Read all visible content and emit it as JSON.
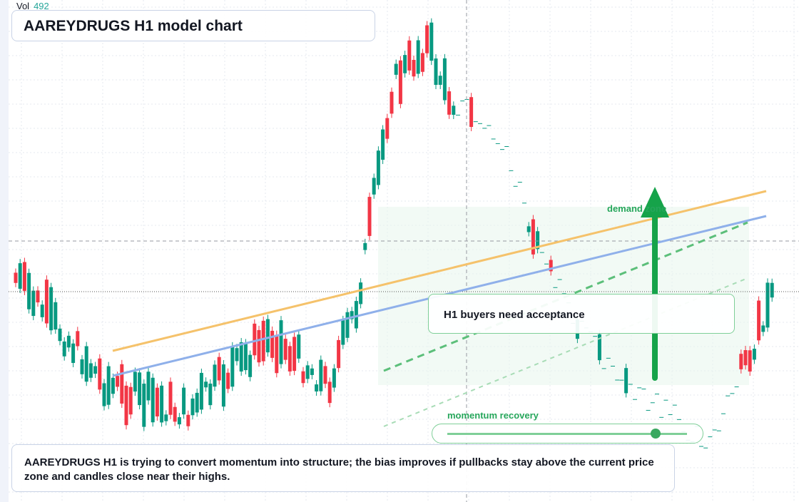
{
  "header": {
    "vol_label": "Vol",
    "vol_value": "492",
    "title": "AAREYDRUGS H1 model chart"
  },
  "annotations": {
    "zone": "demand zone",
    "callout": "H1 buyers need acceptance",
    "momentum": "momentum recovery"
  },
  "description": "AAREYDRUGS H1 is trying to convert momentum into structure; the bias improves if pullbacks stay above the current price zone and candles close near their highs."
}
